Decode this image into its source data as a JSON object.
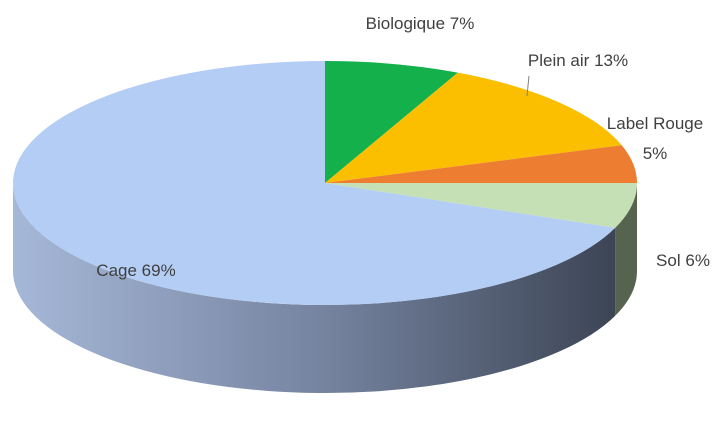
{
  "chart_data": {
    "type": "pie",
    "categories": [
      "Biologique",
      "Plein air",
      "Label Rouge",
      "Sol",
      "Cage"
    ],
    "values": [
      7,
      13,
      5,
      6,
      69
    ],
    "value_labels": [
      "7%",
      "13%",
      "5%",
      "6%",
      "69%"
    ],
    "colors": [
      "#13b04b",
      "#fbbf00",
      "#ed7d31",
      "#c5e0b4",
      "#b4cdf5"
    ]
  }
}
